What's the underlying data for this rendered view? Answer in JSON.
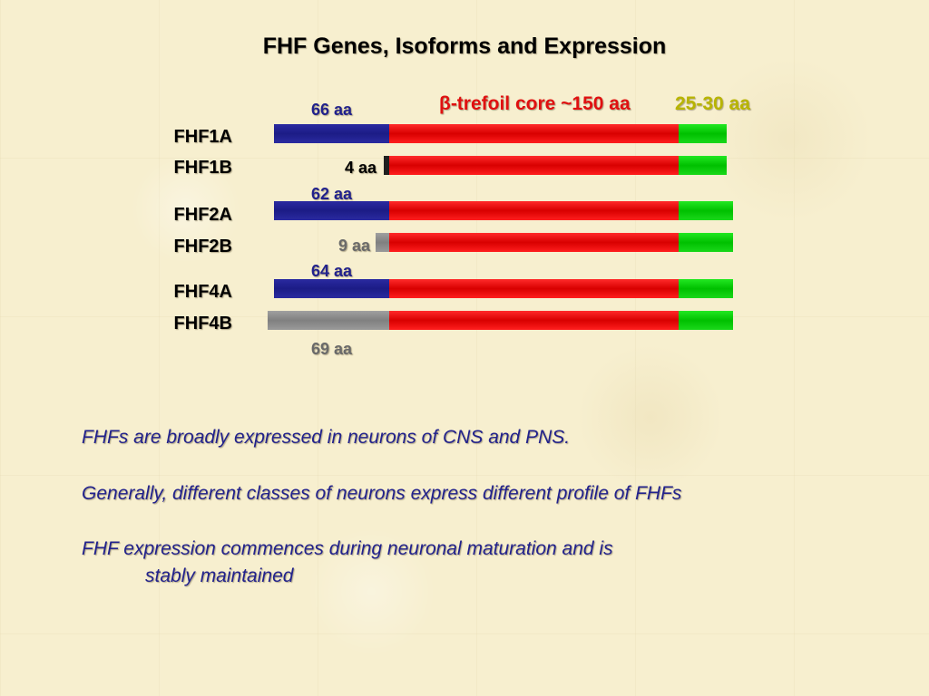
{
  "title": "FHF Genes, Isoforms and Expression",
  "header_labels": {
    "core": "β-trefoil core ~150 aa",
    "tail": "25-30 aa"
  },
  "rows": [
    {
      "name": "FHF1A",
      "n_term_label": "66 aa"
    },
    {
      "name": "FHF1B",
      "n_term_label": "4 aa"
    },
    {
      "name": "FHF2A",
      "n_term_label": "62 aa"
    },
    {
      "name": "FHF2B",
      "n_term_label": "9 aa"
    },
    {
      "name": "FHF4A",
      "n_term_label": "64 aa"
    },
    {
      "name": "FHF4B",
      "n_term_label": "69 aa"
    }
  ],
  "bullets": [
    "FHFs are broadly expressed in neurons of CNS and PNS.",
    "Generally, different classes of neurons express different profile of FHFs",
    "FHF expression commences during neuronal maturation and is",
    "stably maintained"
  ],
  "colors": {
    "n_term_A": "#1c1c86",
    "core": "#d80000",
    "c_term": "#00c000",
    "n_term_B_gray": "#808080",
    "label_blue": "#22228c",
    "core_label": "#e01010",
    "tail_label": "#b8b400"
  }
}
